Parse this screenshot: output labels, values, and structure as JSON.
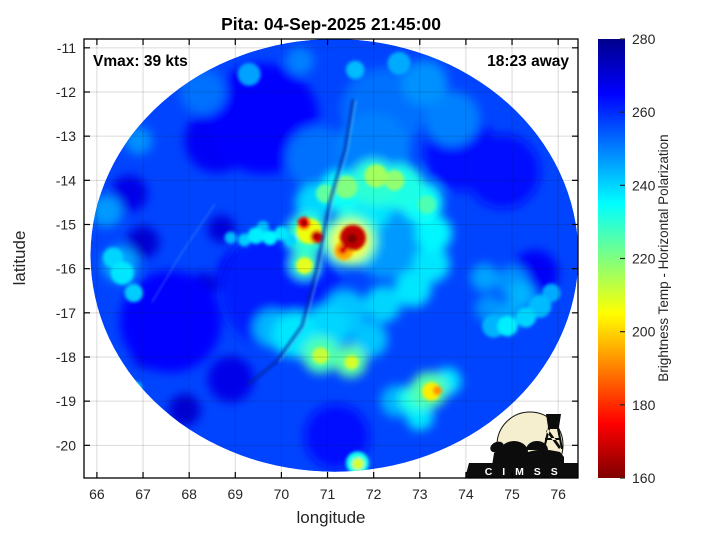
{
  "logo": {
    "text": "C I M S S"
  },
  "chart_data": {
    "type": "heatmap",
    "title": "Pita: 04-Sep-2025 21:45:00",
    "xlabel": "longitude",
    "ylabel": "latitude",
    "annotations": {
      "top_left": "Vmax: 39 kts",
      "top_right": "18:23 away"
    },
    "xlim": [
      65.72,
      76.43
    ],
    "ylim": [
      -20.74,
      -10.8
    ],
    "xticks": [
      66,
      67,
      68,
      69,
      70,
      71,
      72,
      73,
      74,
      75,
      76
    ],
    "yticks": [
      -11,
      -12,
      -13,
      -14,
      -15,
      -16,
      -17,
      -18,
      -19,
      -20
    ],
    "grid": true,
    "colorbar": {
      "label": "Brightness Temp - Horizontal Polarization",
      "min": 160,
      "max": 280,
      "ticks": [
        160,
        180,
        200,
        220,
        240,
        260,
        280
      ]
    },
    "colormap_stops": [
      [
        160,
        "#7f0000"
      ],
      [
        175,
        "#ff0000"
      ],
      [
        205,
        "#ffff00"
      ],
      [
        235,
        "#00ffff"
      ],
      [
        265,
        "#0000ff"
      ],
      [
        280,
        "#00008c"
      ]
    ],
    "swath": {
      "center_lon": 71.15,
      "center_lat": -15.7,
      "rx_deg": 5.29,
      "ry_deg": 4.9,
      "base_temp": 257
    },
    "seams": [
      {
        "points": [
          [
            71.55,
            -12.2
          ],
          [
            71.38,
            -13.3
          ],
          [
            71.05,
            -14.5
          ],
          [
            70.77,
            -16.0
          ],
          [
            70.45,
            -17.3
          ],
          [
            69.9,
            -18.1
          ],
          [
            69.3,
            -18.6
          ]
        ],
        "color": "#001ea0",
        "width": 4.5,
        "opacity": 0.5
      },
      {
        "points": [
          [
            71.62,
            -12.2
          ],
          [
            71.45,
            -13.3
          ],
          [
            71.12,
            -14.5
          ],
          [
            70.84,
            -16.0
          ],
          [
            70.52,
            -17.3
          ],
          [
            69.97,
            -18.1
          ]
        ],
        "color": "#6fd0ff",
        "width": 1.6,
        "opacity": 0.4
      },
      {
        "points": [
          [
            68.55,
            -14.55
          ],
          [
            67.8,
            -15.7
          ],
          [
            67.2,
            -16.75
          ]
        ],
        "color": "#5aaaff",
        "width": 1.8,
        "opacity": 0.3
      }
    ],
    "features": [
      [
        69.6,
        -12.6,
        265,
        1.2
      ],
      [
        67.6,
        -17.2,
        265,
        1.1
      ],
      [
        70.0,
        -16.5,
        262,
        1.3
      ],
      [
        68.6,
        -13.1,
        266,
        0.7
      ],
      [
        69.9,
        -12.3,
        268,
        0.5
      ],
      [
        69.3,
        -16.2,
        266,
        0.7
      ],
      [
        75.5,
        -16.1,
        266,
        0.5
      ],
      [
        68.9,
        -18.5,
        268,
        0.5
      ],
      [
        71.2,
        -19.8,
        264,
        0.7
      ],
      [
        67.0,
        -15.4,
        271,
        0.35
      ],
      [
        67.8,
        -17.1,
        272,
        0.4
      ],
      [
        67.1,
        -17.9,
        271,
        0.35
      ],
      [
        67.9,
        -19.2,
        271,
        0.35
      ],
      [
        68.3,
        -16.4,
        270,
        0.3
      ],
      [
        66.7,
        -14.3,
        268,
        0.4
      ],
      [
        73.9,
        -13.4,
        263,
        0.8
      ],
      [
        74.8,
        -13.8,
        263,
        0.8
      ],
      [
        68.7,
        -15.1,
        270,
        0.3
      ],
      [
        72.2,
        -12.4,
        252,
        0.9
      ],
      [
        73.1,
        -11.8,
        248,
        0.5
      ],
      [
        73.7,
        -12.6,
        250,
        0.6
      ],
      [
        68.3,
        -12.0,
        252,
        0.5
      ],
      [
        70.8,
        -13.5,
        252,
        0.7
      ],
      [
        72.0,
        -13.3,
        250,
        0.8
      ],
      [
        66.2,
        -14.7,
        247,
        0.35
      ],
      [
        74.4,
        -16.2,
        246,
        0.3
      ],
      [
        75.0,
        -16.3,
        248,
        0.35
      ],
      [
        66.5,
        -15.9,
        246,
        0.4
      ],
      [
        70.7,
        -14.5,
        240,
        0.4
      ],
      [
        71.3,
        -14.25,
        234,
        0.45
      ],
      [
        72.0,
        -14.05,
        230,
        0.5
      ],
      [
        72.6,
        -14.15,
        232,
        0.5
      ],
      [
        73.05,
        -14.5,
        234,
        0.45
      ],
      [
        73.3,
        -15.2,
        236,
        0.4
      ],
      [
        73.25,
        -15.9,
        238,
        0.4
      ],
      [
        72.85,
        -16.45,
        238,
        0.4
      ],
      [
        72.2,
        -16.8,
        240,
        0.4
      ],
      [
        71.4,
        -16.95,
        242,
        0.45
      ],
      [
        72.3,
        -15.4,
        247,
        0.8
      ],
      [
        71.4,
        -14.15,
        220,
        0.25
      ],
      [
        72.05,
        -13.9,
        216,
        0.25
      ],
      [
        72.45,
        -14.0,
        218,
        0.22
      ],
      [
        70.95,
        -14.3,
        224,
        0.2
      ],
      [
        73.15,
        -14.55,
        226,
        0.2
      ],
      [
        70.55,
        -15.2,
        230,
        0.45
      ],
      [
        71.5,
        -15.35,
        228,
        0.6
      ],
      [
        71.8,
        -14.55,
        238,
        0.6
      ],
      [
        70.5,
        -15.9,
        228,
        0.3
      ],
      [
        70.6,
        -15.15,
        207,
        0.28
      ],
      [
        71.5,
        -15.38,
        205,
        0.42
      ],
      [
        70.5,
        -15.93,
        208,
        0.18
      ],
      [
        71.35,
        -15.6,
        195,
        0.2
      ],
      [
        70.49,
        -14.97,
        175,
        0.14
      ],
      [
        70.49,
        -14.96,
        160,
        0.06
      ],
      [
        70.77,
        -15.28,
        172,
        0.14
      ],
      [
        70.76,
        -15.27,
        160,
        0.06
      ],
      [
        71.55,
        -15.3,
        168,
        0.28
      ],
      [
        71.53,
        -15.32,
        156,
        0.11
      ],
      [
        71.33,
        -15.58,
        172,
        0.09
      ],
      [
        69.45,
        -15.25,
        237,
        0.18
      ],
      [
        69.75,
        -15.3,
        236,
        0.16
      ],
      [
        70.0,
        -15.2,
        238,
        0.15
      ],
      [
        69.2,
        -15.35,
        241,
        0.14
      ],
      [
        68.9,
        -15.3,
        243,
        0.13
      ],
      [
        69.6,
        -15.05,
        243,
        0.13
      ],
      [
        70.2,
        -15.35,
        240,
        0.13
      ],
      [
        70.3,
        -17.5,
        238,
        0.5
      ],
      [
        71.0,
        -17.35,
        240,
        0.5
      ],
      [
        69.8,
        -17.35,
        244,
        0.4
      ],
      [
        70.85,
        -17.95,
        226,
        0.4
      ],
      [
        70.85,
        -17.97,
        212,
        0.18
      ],
      [
        71.5,
        -18.1,
        224,
        0.35
      ],
      [
        71.52,
        -18.12,
        210,
        0.15
      ],
      [
        71.9,
        -17.6,
        242,
        0.4
      ],
      [
        73.2,
        -18.75,
        225,
        0.4
      ],
      [
        73.25,
        -18.78,
        203,
        0.2
      ],
      [
        73.38,
        -18.76,
        192,
        0.1
      ],
      [
        72.85,
        -18.95,
        232,
        0.3
      ],
      [
        73.0,
        -19.35,
        238,
        0.3
      ],
      [
        73.6,
        -18.55,
        238,
        0.3
      ],
      [
        72.5,
        -19.0,
        244,
        0.35
      ],
      [
        75.2,
        -16.6,
        244,
        0.3
      ],
      [
        75.6,
        -16.85,
        243,
        0.25
      ],
      [
        74.9,
        -17.05,
        246,
        0.3
      ],
      [
        75.85,
        -16.55,
        245,
        0.2
      ],
      [
        74.6,
        -17.3,
        244,
        0.25
      ],
      [
        74.9,
        -17.3,
        237,
        0.22
      ],
      [
        75.3,
        -17.1,
        240,
        0.22
      ],
      [
        74.5,
        -16.9,
        248,
        0.3
      ],
      [
        71.65,
        -20.4,
        233,
        0.25
      ],
      [
        71.66,
        -20.42,
        210,
        0.13
      ],
      [
        66.35,
        -15.75,
        240,
        0.22
      ],
      [
        66.55,
        -16.1,
        238,
        0.25
      ],
      [
        66.8,
        -16.55,
        241,
        0.2
      ],
      [
        66.85,
        -18.7,
        240,
        0.13
      ],
      [
        69.3,
        -11.6,
        246,
        0.25
      ],
      [
        71.6,
        -11.5,
        243,
        0.2
      ],
      [
        72.55,
        -11.35,
        245,
        0.25
      ],
      [
        70.4,
        -11.3,
        250,
        0.3
      ],
      [
        66.9,
        -13.1,
        248,
        0.3
      ]
    ]
  }
}
